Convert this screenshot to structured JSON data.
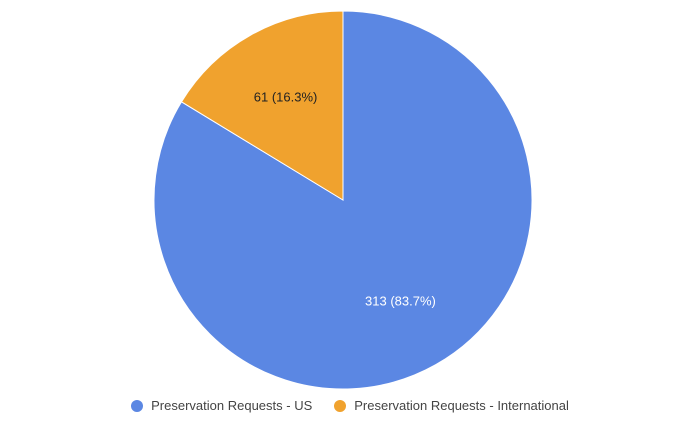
{
  "chart_data": {
    "type": "pie",
    "title": "",
    "slices": [
      {
        "name": "Preservation Requests - US",
        "value": 313,
        "percent": 83.7,
        "label": "313 (83.7%)",
        "color": "#5B87E3",
        "label_color": "#ffffff"
      },
      {
        "name": "Preservation Requests - International",
        "value": 61,
        "percent": 16.3,
        "label": "61 (16.3%)",
        "color": "#F0A22E",
        "label_color": "#222222"
      }
    ],
    "legend_placement": "bottom",
    "start_angle": "top",
    "direction": "clockwise"
  }
}
